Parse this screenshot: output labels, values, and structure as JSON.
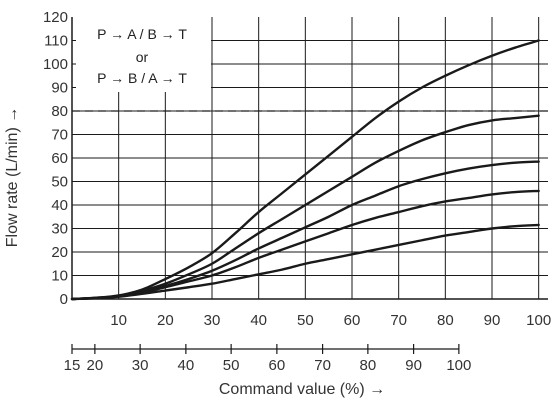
{
  "chart_data": {
    "type": "line",
    "xlabel": "Command value (%) →",
    "ylabel": "Flow rate (L/min) →",
    "xlim": [
      0,
      102
    ],
    "ylim": [
      0,
      120
    ],
    "x_ticks": [
      "10",
      "20",
      "30",
      "40",
      "50",
      "60",
      "70",
      "80",
      "90",
      "100"
    ],
    "y_ticks": [
      "0",
      "10",
      "20",
      "30",
      "40",
      "50",
      "60",
      "70",
      "80",
      "90",
      "100",
      "110",
      "120"
    ],
    "secondary_x_ticks": [
      "15",
      "20",
      "30",
      "40",
      "50",
      "60",
      "70",
      "80",
      "90",
      "100"
    ],
    "secondary_x_positions": [
      0,
      4.9,
      14.6,
      24.4,
      34.1,
      43.9,
      53.7,
      63.4,
      73.2,
      82.9
    ],
    "reference_line": 80,
    "grid": true,
    "legend": {
      "lines": [
        "P → A / B → T",
        "or",
        "P → B / A → T"
      ],
      "placement": "top-left"
    },
    "x": [
      0,
      5,
      10,
      15,
      20,
      25,
      30,
      35,
      40,
      45,
      50,
      55,
      60,
      65,
      70,
      75,
      80,
      85,
      90,
      95,
      100
    ],
    "series": [
      {
        "values": [
          0,
          0.5,
          1.5,
          4,
          8.5,
          13.5,
          19.5,
          28,
          37,
          45,
          53,
          61,
          69,
          77,
          84,
          90,
          95,
          99.5,
          103.5,
          107,
          110
        ]
      },
      {
        "values": [
          0,
          0.5,
          1.3,
          3.5,
          6.5,
          10.5,
          15,
          21.5,
          28,
          34,
          40,
          46,
          52,
          58,
          63,
          67.5,
          71,
          74,
          76,
          77,
          78
        ]
      },
      {
        "values": [
          0,
          0.4,
          1.2,
          3,
          5.5,
          8.5,
          12,
          16.5,
          21.5,
          26,
          30.5,
          35,
          40,
          44,
          48,
          51,
          53.5,
          55.5,
          57,
          58,
          58.5
        ]
      },
      {
        "values": [
          0,
          0.4,
          1.1,
          2.7,
          5,
          7.5,
          10,
          13.5,
          17.5,
          21,
          24.5,
          28,
          31.5,
          34.5,
          37,
          39.5,
          41.5,
          43,
          44.5,
          45.5,
          46
        ]
      },
      {
        "values": [
          0,
          0.3,
          1,
          2.2,
          3.6,
          5,
          6.5,
          8.5,
          10.5,
          12.5,
          15,
          17,
          19,
          21,
          23,
          25,
          27,
          28.5,
          30,
          31,
          31.5
        ]
      }
    ]
  }
}
